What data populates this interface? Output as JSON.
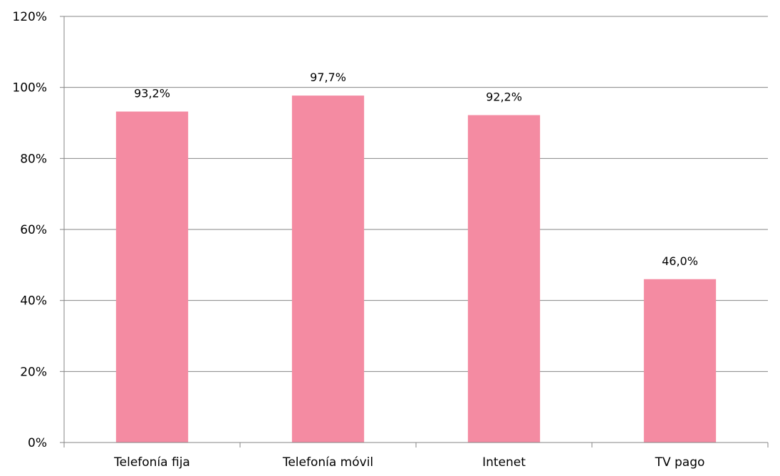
{
  "chart_data": {
    "type": "bar",
    "title": "",
    "xlabel": "",
    "ylabel": "",
    "categories": [
      "Telefonía fija",
      "Telefonía móvil",
      "Intenet",
      "TV pago"
    ],
    "values": [
      93.2,
      97.7,
      92.2,
      46.0
    ],
    "data_labels": [
      "93,2%",
      "97,7%",
      "92,2%",
      "46,0%"
    ],
    "ylim": [
      0,
      120
    ],
    "yticks": [
      0,
      20,
      40,
      60,
      80,
      100,
      120
    ],
    "ytick_labels": [
      "0%",
      "20%",
      "40%",
      "60%",
      "80%",
      "100%",
      "120%"
    ],
    "grid": true,
    "legend": "none",
    "colors": {
      "bar": "#F48BA2",
      "grid": "#868686",
      "axis": "#868686",
      "text": "#000000"
    }
  }
}
